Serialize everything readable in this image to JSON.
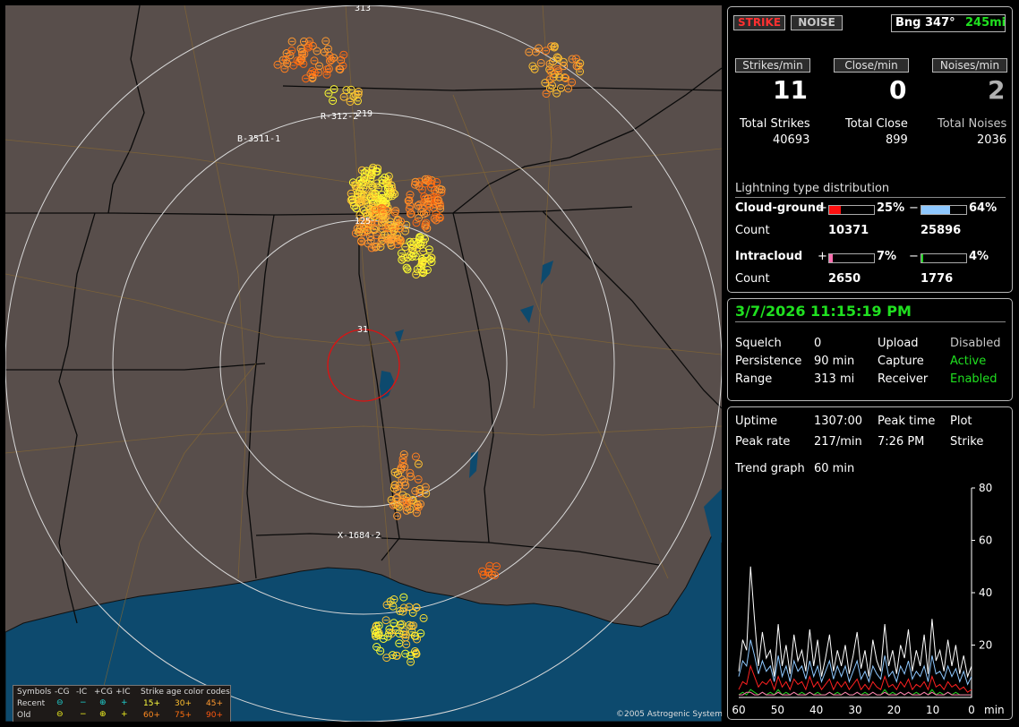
{
  "map": {
    "range_labels": [
      "31",
      "125",
      "219",
      "313"
    ],
    "station_labels": [
      "B-3511-1",
      "R-312-2",
      "X-1684-2"
    ],
    "copyright": "©2005 Astrogenic Systems",
    "legend": {
      "row_header": [
        "Symbols",
        "-CG",
        "-IC",
        "+CG",
        "+IC",
        "Strike age color codes"
      ],
      "recent": "Recent",
      "old": "Old",
      "age_recent": [
        "15+",
        "30+",
        "45+"
      ],
      "age_old": [
        "60+",
        "75+",
        "90+"
      ]
    }
  },
  "mode": {
    "strike_label": "STRIKE",
    "noise_label": "NOISE"
  },
  "bearing": {
    "text": "Bng 347°",
    "range": "245mi"
  },
  "rates": {
    "strikes_label": "Strikes/min",
    "strikes_value": "11",
    "close_label": "Close/min",
    "close_value": "0",
    "noises_label": "Noises/min",
    "noises_value": "2"
  },
  "totals": {
    "strikes_label": "Total Strikes",
    "strikes_value": "40693",
    "close_label": "Total Close",
    "close_value": "899",
    "noises_label": "Total Noises",
    "noises_value": "2036"
  },
  "distribution": {
    "title": "Lightning type distribution",
    "cg_label": "Cloud-ground",
    "cg_pos_pct": "25%",
    "cg_neg_pct": "64%",
    "cg_pos_count": "10371",
    "cg_neg_count": "25896",
    "ic_label": "Intracloud",
    "ic_pos_pct": "7%",
    "ic_neg_pct": "4%",
    "ic_pos_count": "2650",
    "ic_neg_count": "1776",
    "count_label": "Count",
    "plus": "+",
    "minus": "−",
    "fill": {
      "cg_pos": 0.25,
      "cg_neg": 0.64,
      "ic_pos": 0.07,
      "ic_neg": 0.04
    },
    "colors": {
      "cg_pos": "#ff1010",
      "cg_neg": "#8ec8ff",
      "ic_pos": "#ff70b0",
      "ic_neg": "#20d020"
    }
  },
  "status": {
    "datetime": "3/7/2026 11:15:19 PM",
    "squelch_label": "Squelch",
    "squelch_value": "0",
    "persistence_label": "Persistence",
    "persistence_value": "90 min",
    "range_label": "Range",
    "range_value": "313 mi",
    "upload_label": "Upload",
    "upload_value": "Disabled",
    "capture_label": "Capture",
    "capture_value": "Active",
    "receiver_label": "Receiver",
    "receiver_value": "Enabled"
  },
  "stats": {
    "uptime_label": "Uptime",
    "uptime_value": "1307:00",
    "peak_time_label": "Peak time",
    "peak_time_value": "7:26 PM",
    "plot_label": "Plot",
    "plot_value": "Strike",
    "peak_rate_label": "Peak rate",
    "peak_rate_value": "217/min",
    "trend_label": "Trend graph",
    "trend_value": "60 min"
  },
  "chart_data": {
    "type": "line",
    "x_ticks": [
      "60",
      "50",
      "40",
      "30",
      "20",
      "10",
      "0"
    ],
    "x_unit": "min",
    "y_ticks": [
      "80",
      "60",
      "40",
      "20"
    ],
    "ylim": [
      0,
      80
    ],
    "xlim": [
      60,
      0
    ],
    "series": [
      {
        "color": "#ffffff",
        "values": [
          10,
          22,
          18,
          50,
          30,
          12,
          25,
          15,
          18,
          8,
          28,
          12,
          20,
          9,
          24,
          14,
          18,
          10,
          26,
          12,
          22,
          8,
          15,
          24,
          10,
          18,
          12,
          20,
          9,
          16,
          25,
          11,
          18,
          8,
          22,
          14,
          10,
          28,
          12,
          18,
          9,
          20,
          15,
          26,
          10,
          18,
          12,
          24,
          9,
          30,
          14,
          18,
          10,
          22,
          12,
          20,
          9,
          16,
          8,
          12
        ]
      },
      {
        "color": "#8ec8ff",
        "values": [
          8,
          14,
          12,
          22,
          16,
          9,
          14,
          10,
          12,
          6,
          16,
          8,
          12,
          6,
          14,
          10,
          12,
          7,
          14,
          8,
          12,
          6,
          10,
          14,
          7,
          12,
          8,
          12,
          6,
          10,
          14,
          7,
          10,
          6,
          12,
          9,
          7,
          16,
          8,
          10,
          6,
          12,
          9,
          14,
          7,
          10,
          8,
          12,
          6,
          16,
          9,
          10,
          7,
          12,
          8,
          11,
          6,
          10,
          5,
          8
        ]
      },
      {
        "color": "#ff2020",
        "values": [
          3,
          6,
          5,
          12,
          8,
          4,
          6,
          5,
          7,
          3,
          8,
          4,
          6,
          3,
          7,
          5,
          6,
          3,
          8,
          4,
          6,
          3,
          5,
          7,
          3,
          6,
          4,
          6,
          3,
          5,
          7,
          3,
          5,
          3,
          6,
          4,
          3,
          8,
          4,
          5,
          3,
          6,
          4,
          7,
          3,
          5,
          4,
          6,
          3,
          8,
          4,
          5,
          3,
          6,
          4,
          5,
          3,
          4,
          2,
          3
        ]
      },
      {
        "color": "#20d020",
        "values": [
          1,
          2,
          1,
          3,
          2,
          1,
          2,
          1,
          2,
          1,
          3,
          1,
          2,
          1,
          2,
          1,
          2,
          1,
          2,
          1,
          2,
          1,
          1,
          2,
          1,
          2,
          1,
          2,
          1,
          1,
          2,
          1,
          2,
          1,
          2,
          1,
          1,
          3,
          1,
          2,
          1,
          2,
          1,
          2,
          1,
          2,
          1,
          2,
          1,
          3,
          1,
          2,
          1,
          2,
          1,
          2,
          1,
          1,
          1,
          1
        ]
      },
      {
        "color": "#ff70b0",
        "values": [
          1,
          1,
          2,
          2,
          1,
          1,
          2,
          1,
          1,
          1,
          2,
          1,
          1,
          1,
          2,
          1,
          1,
          1,
          2,
          1,
          1,
          1,
          1,
          2,
          1,
          1,
          1,
          2,
          1,
          1,
          2,
          1,
          1,
          1,
          2,
          1,
          1,
          2,
          1,
          1,
          1,
          2,
          1,
          2,
          1,
          1,
          1,
          2,
          1,
          2,
          1,
          1,
          1,
          2,
          1,
          1,
          1,
          1,
          1,
          1
        ]
      }
    ]
  }
}
